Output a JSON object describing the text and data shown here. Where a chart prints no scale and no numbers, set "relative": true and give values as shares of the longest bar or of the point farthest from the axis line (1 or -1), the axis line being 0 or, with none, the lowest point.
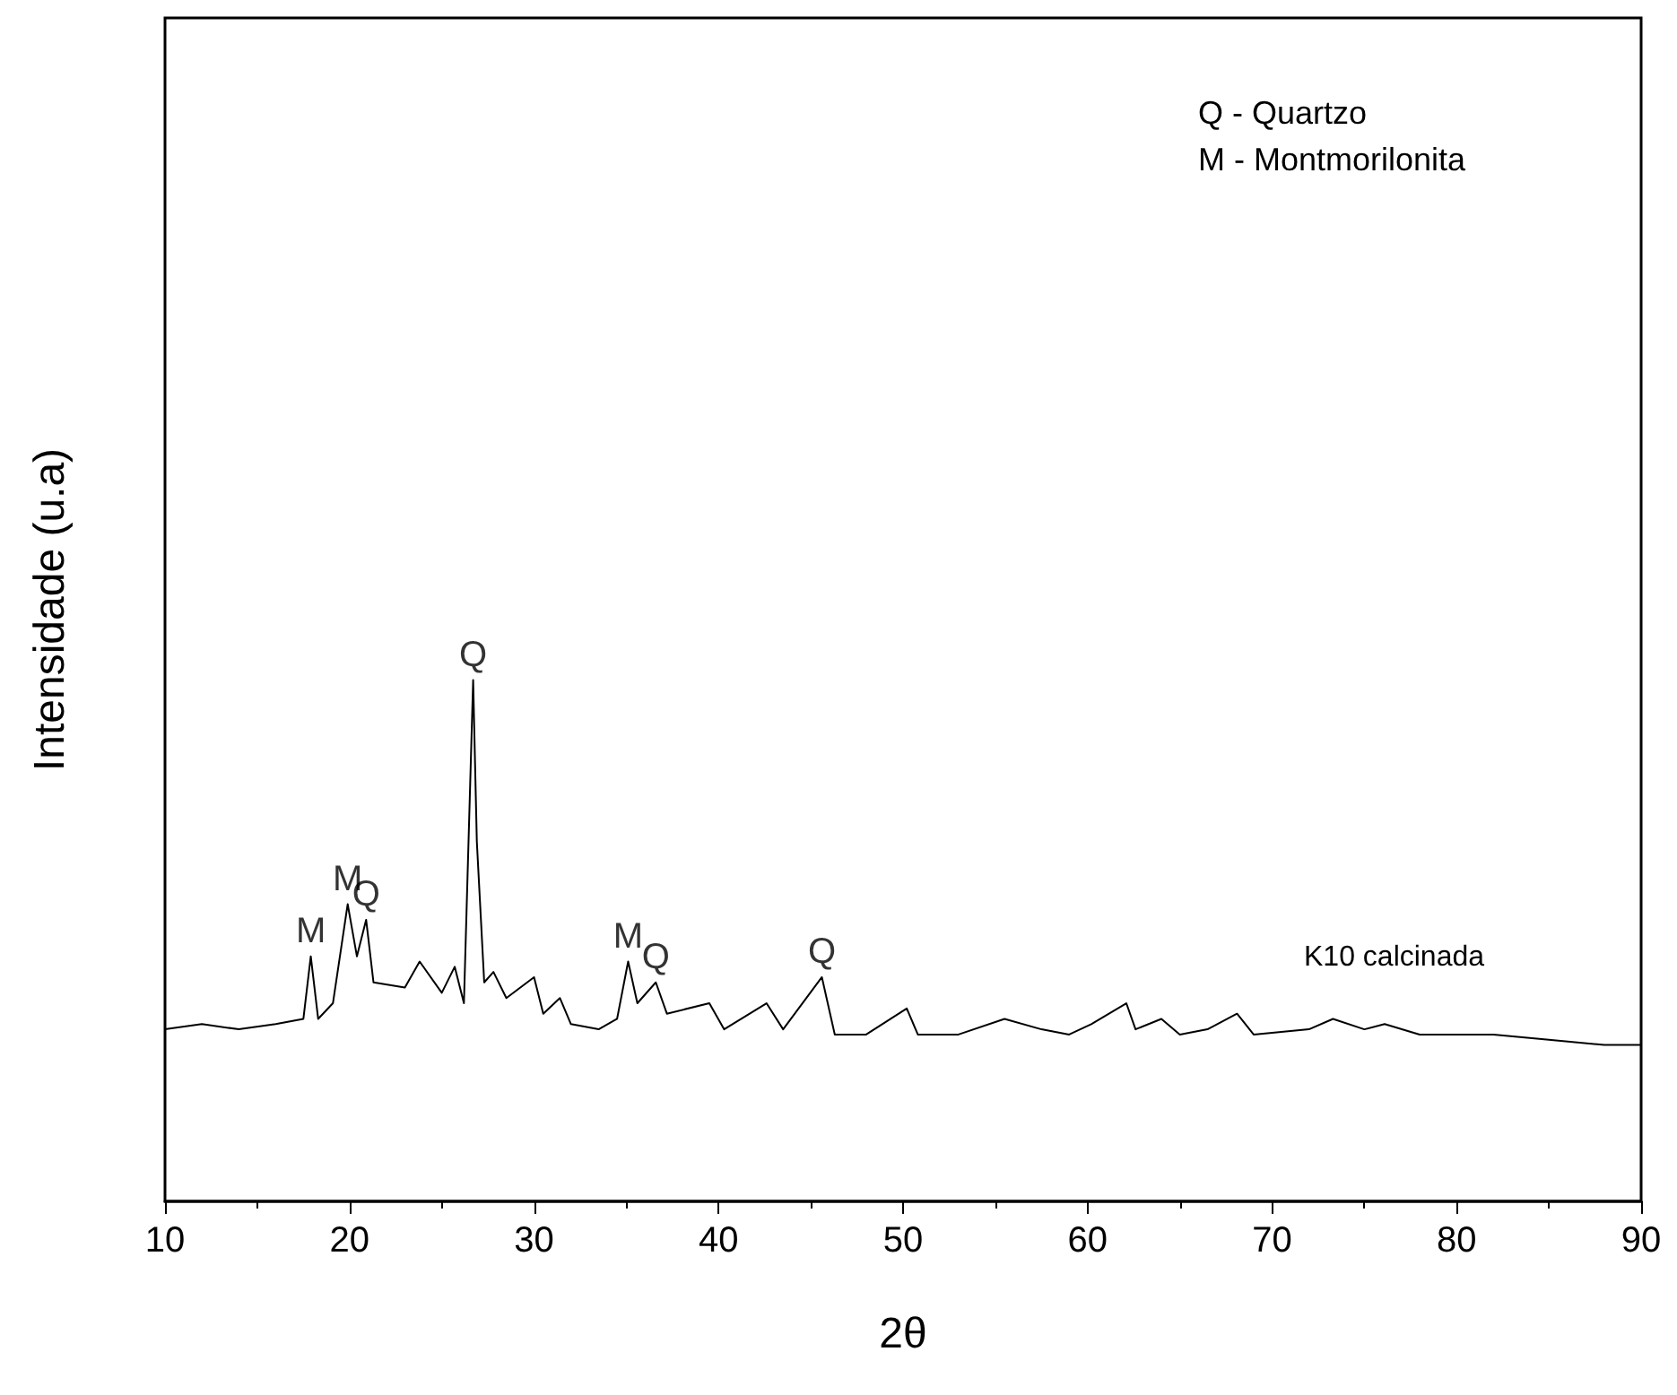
{
  "chart_data": {
    "type": "line",
    "relative": true,
    "xlabel": "2θ",
    "ylabel": "Intensidade (u.a)",
    "xlim": [
      10,
      90
    ],
    "xticks": [
      10,
      20,
      30,
      40,
      50,
      60,
      70,
      80,
      90
    ],
    "grid": false,
    "legend": false,
    "marker": "none",
    "line_style": "solid",
    "annotations": [
      "Q - Quartzo",
      "M - Montmorilonita",
      {
        "text": "M",
        "x": 17.9,
        "y": 0.47
      },
      {
        "text": "M",
        "x": 19.9,
        "y": 0.57
      },
      {
        "text": "Q",
        "x": 20.9,
        "y": 0.54
      },
      {
        "text": "Q",
        "x": 26.7,
        "y": 1.0
      },
      {
        "text": "M",
        "x": 35.1,
        "y": 0.46
      },
      {
        "text": "Q",
        "x": 36.6,
        "y": 0.42
      },
      {
        "text": "Q",
        "x": 45.6,
        "y": 0.43
      }
    ],
    "series": [
      {
        "name": "K10 calcinada",
        "color": "#000000",
        "x": [
          10,
          12,
          14,
          16,
          17.5,
          17.9,
          18.3,
          19.1,
          19.9,
          20.4,
          20.9,
          21.3,
          23,
          23.8,
          25,
          25.7,
          26.2,
          26.7,
          26.9,
          27.3,
          27.8,
          28.5,
          30,
          30.5,
          31.4,
          32,
          33.5,
          34.5,
          35.1,
          35.6,
          36.6,
          37.2,
          39.5,
          40.3,
          42.6,
          43.5,
          45.6,
          46.3,
          48,
          50.2,
          50.8,
          53,
          55.5,
          57.5,
          59,
          60.2,
          62.1,
          62.6,
          64,
          65,
          66.5,
          68.1,
          69,
          72,
          73.3,
          75,
          76.1,
          78,
          80,
          82,
          85,
          88,
          90
        ],
        "values": [
          0.33,
          0.34,
          0.33,
          0.34,
          0.35,
          0.47,
          0.35,
          0.38,
          0.57,
          0.47,
          0.54,
          0.42,
          0.41,
          0.46,
          0.4,
          0.45,
          0.38,
          1.0,
          0.69,
          0.42,
          0.44,
          0.39,
          0.43,
          0.36,
          0.39,
          0.34,
          0.33,
          0.35,
          0.46,
          0.38,
          0.42,
          0.36,
          0.38,
          0.33,
          0.38,
          0.33,
          0.43,
          0.32,
          0.32,
          0.37,
          0.32,
          0.32,
          0.35,
          0.33,
          0.32,
          0.34,
          0.38,
          0.33,
          0.35,
          0.32,
          0.33,
          0.36,
          0.32,
          0.33,
          0.35,
          0.33,
          0.34,
          0.32,
          0.32,
          0.32,
          0.31,
          0.3,
          0.3
        ]
      }
    ]
  }
}
